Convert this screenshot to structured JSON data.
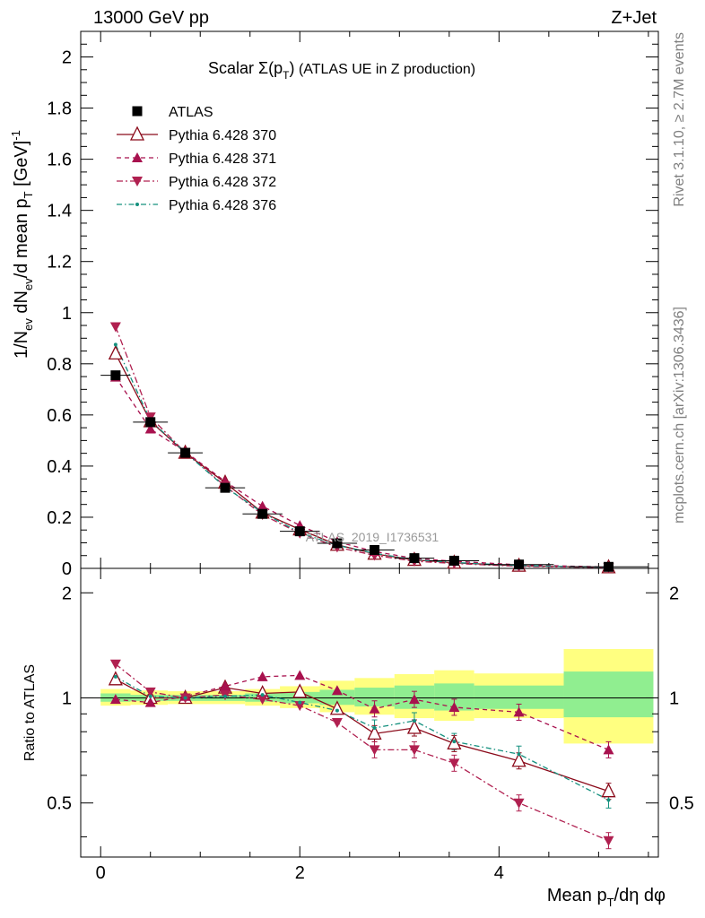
{
  "header": {
    "left": "13000 GeV pp",
    "right": "Z+Jet"
  },
  "side_labels": {
    "rivet": "Rivet 3.1.10, ≥ 2.7M events",
    "mcplots": "mcplots.cern.ch [arXiv:1306.3436]"
  },
  "watermark": "ATLAS_2019_I1736531",
  "chart_data": [
    {
      "type": "scatter",
      "panel": "main",
      "title": "Scalar Σ(pT) (ATLAS UE in Z production)",
      "title_parts": {
        "pre": "Scalar ",
        "sigma": "Σ(p",
        "sub": "T",
        "post_paren": ")",
        "rest": " (ATLAS UE in Z production)"
      },
      "ylabel": "1/Nev dNev/d mean pT [GeV]-1",
      "ylabel_parts": {
        "a": "1/N",
        "a_sub": "ev",
        "b": " dN",
        "b_sub": "ev",
        "c": "/d mean p",
        "c_sub": "T",
        "d": " [GeV]",
        "d_sup": "-1"
      },
      "xlim": [
        -0.2,
        5.6
      ],
      "ylim": [
        0,
        2.1
      ],
      "yticks": [
        0,
        0.2,
        0.4,
        0.6,
        0.8,
        1,
        1.2,
        1.4,
        1.6,
        1.8,
        2
      ],
      "ytick_labels": [
        "0",
        "0.2",
        "0.4",
        "0.6",
        "0.8",
        "1",
        "1.2",
        "1.4",
        "1.6",
        "1.8",
        "2"
      ],
      "legend_position": "top-left",
      "x": [
        0.15,
        0.5,
        0.85,
        1.25,
        1.625,
        2.0,
        2.375,
        2.75,
        3.15,
        3.55,
        4.2,
        5.1
      ],
      "xerr": [
        0.15,
        0.175,
        0.175,
        0.2,
        0.2,
        0.2,
        0.2,
        0.2,
        0.2,
        0.25,
        0.35,
        0.4
      ],
      "series": [
        {
          "name": "ATLAS",
          "style": "data",
          "color": "#000000",
          "marker": "square",
          "values": [
            0.755,
            0.572,
            0.452,
            0.315,
            0.213,
            0.145,
            0.098,
            0.072,
            0.04,
            0.03,
            0.015,
            0.006
          ]
        },
        {
          "name": "Pythia 6.428 370",
          "style": "solid",
          "color": "#8b0a1a",
          "marker": "triangle-up-open",
          "values": [
            0.84,
            0.575,
            0.452,
            0.335,
            0.218,
            0.152,
            0.092,
            0.057,
            0.033,
            0.022,
            0.01,
            0.004
          ]
        },
        {
          "name": "Pythia 6.428 371",
          "style": "dashed",
          "color": "#a8114e",
          "marker": "triangle-up",
          "values": [
            0.748,
            0.545,
            0.456,
            0.34,
            0.243,
            0.168,
            0.104,
            0.066,
            0.039,
            0.028,
            0.014,
            0.005
          ]
        },
        {
          "name": "Pythia 6.428 372",
          "style": "dashdot",
          "color": "#b02050",
          "marker": "triangle-down",
          "values": [
            0.945,
            0.592,
            0.453,
            0.322,
            0.21,
            0.137,
            0.083,
            0.051,
            0.028,
            0.019,
            0.008,
            0.003
          ]
        },
        {
          "name": "Pythia 6.428 376",
          "style": "dashdot-teal",
          "color": "#14907e",
          "marker": "dot",
          "values": [
            0.875,
            0.578,
            0.453,
            0.318,
            0.218,
            0.14,
            0.09,
            0.059,
            0.034,
            0.023,
            0.011,
            0.004
          ]
        }
      ]
    },
    {
      "type": "scatter",
      "panel": "ratio",
      "ylabel": "Ratio to ATLAS",
      "xlabel": "Mean pT/dη dφ",
      "xlabel_parts": {
        "pre": "Mean p",
        "sub": "T",
        "post": "/dη dφ"
      },
      "xlim": [
        -0.2,
        5.6
      ],
      "ylim": [
        0.35,
        2.35
      ],
      "log_y": true,
      "xticks": [
        0,
        2,
        4
      ],
      "xtick_labels": [
        "0",
        "2",
        "4"
      ],
      "yticks": [
        0.5,
        1,
        2
      ],
      "ytick_labels": [
        "0.5",
        "1",
        "2"
      ],
      "bands": {
        "x_edges": [
          0,
          0.3,
          0.675,
          1.025,
          1.45,
          1.8,
          2.2,
          2.55,
          2.95,
          3.35,
          3.75,
          4.65,
          5.55
        ],
        "green": [
          [
            0.975,
            1.03
          ],
          [
            0.98,
            1.02
          ],
          [
            0.98,
            1.02
          ],
          [
            0.98,
            1.02
          ],
          [
            0.975,
            1.03
          ],
          [
            0.965,
            1.04
          ],
          [
            0.955,
            1.055
          ],
          [
            0.945,
            1.07
          ],
          [
            0.93,
            1.085
          ],
          [
            0.92,
            1.1
          ],
          [
            0.93,
            1.085
          ],
          [
            0.88,
            1.19
          ]
        ],
        "yellow": [
          [
            0.95,
            1.06
          ],
          [
            0.955,
            1.05
          ],
          [
            0.96,
            1.045
          ],
          [
            0.96,
            1.045
          ],
          [
            0.95,
            1.06
          ],
          [
            0.935,
            1.08
          ],
          [
            0.91,
            1.12
          ],
          [
            0.895,
            1.14
          ],
          [
            0.875,
            1.17
          ],
          [
            0.86,
            1.2
          ],
          [
            0.875,
            1.175
          ],
          [
            0.74,
            1.38
          ]
        ]
      },
      "series": [
        {
          "name": "Pythia 6.428 370",
          "values": [
            1.13,
            1.0,
            1.0,
            1.07,
            1.03,
            1.04,
            0.93,
            0.79,
            0.82,
            0.74,
            0.66,
            0.54
          ]
        },
        {
          "name": "Pythia 6.428 371",
          "values": [
            0.99,
            0.97,
            1.01,
            1.08,
            1.15,
            1.16,
            1.05,
            0.93,
            0.99,
            0.94,
            0.91,
            0.71
          ]
        },
        {
          "name": "Pythia 6.428 372",
          "values": [
            1.25,
            1.04,
            1.0,
            1.02,
            0.99,
            0.95,
            0.85,
            0.71,
            0.71,
            0.65,
            0.5,
            0.39
          ]
        },
        {
          "name": "Pythia 6.428 376",
          "values": [
            1.15,
            1.01,
            1.0,
            1.01,
            1.02,
            0.97,
            0.92,
            0.82,
            0.86,
            0.75,
            0.69,
            0.51
          ]
        }
      ]
    }
  ]
}
